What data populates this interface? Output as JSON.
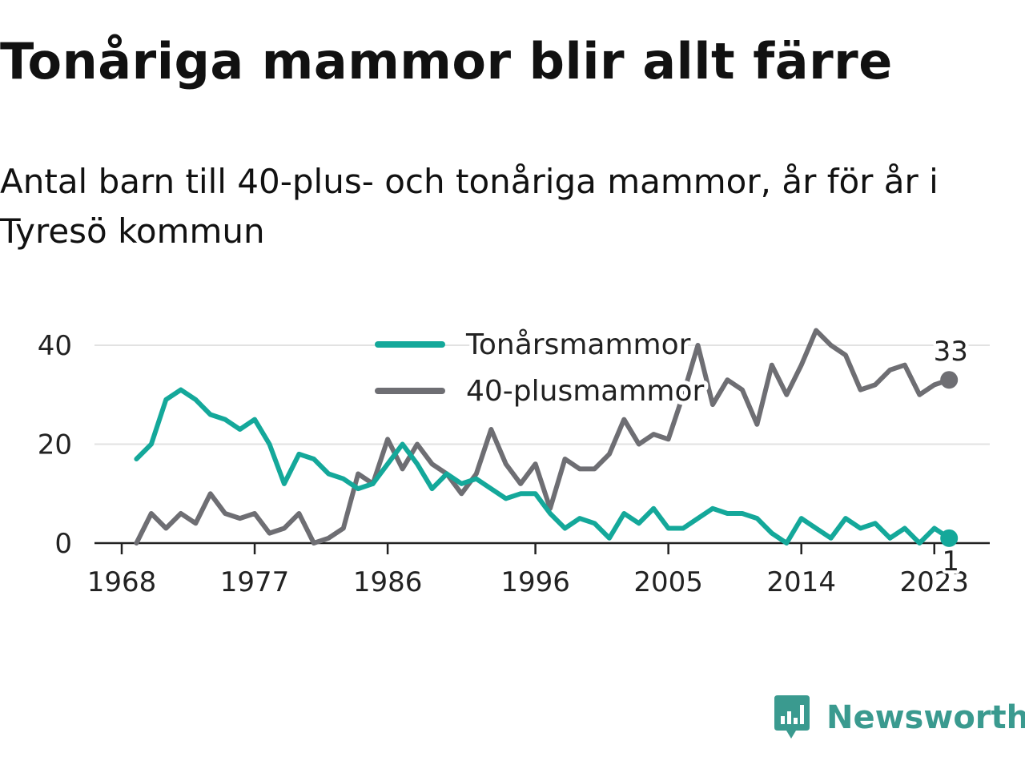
{
  "title": "Tonåriga mammor blir allt färre",
  "subtitle": "Antal barn till 40-plus- och tonåriga mammor, år för år i Tyresö kommun",
  "brand": {
    "name": "Newsworthy",
    "color": "#3a9a8f",
    "icon": "newsworthy-logo-icon"
  },
  "colors": {
    "teen": "#14a89a",
    "forty": "#6e6e73",
    "grid": "#e2e2e2",
    "axis": "#222222",
    "text": "#222222"
  },
  "chart_data": {
    "type": "line",
    "title": "",
    "xlabel": "",
    "ylabel": "",
    "x_ticks": [
      "1968",
      "1977",
      "1986",
      "1996",
      "2005",
      "2014",
      "2023"
    ],
    "y_ticks": [
      "0",
      "20",
      "40"
    ],
    "xlim": [
      1968,
      2024
    ],
    "ylim": [
      0,
      45
    ],
    "grid": true,
    "legend_position": "top-center",
    "x": [
      1969,
      1970,
      1971,
      1972,
      1973,
      1974,
      1975,
      1976,
      1977,
      1978,
      1979,
      1980,
      1981,
      1982,
      1983,
      1984,
      1985,
      1986,
      1987,
      1988,
      1989,
      1990,
      1991,
      1992,
      1993,
      1994,
      1995,
      1996,
      1997,
      1998,
      1999,
      2000,
      2001,
      2002,
      2003,
      2004,
      2005,
      2006,
      2007,
      2008,
      2009,
      2010,
      2011,
      2012,
      2013,
      2014,
      2015,
      2016,
      2017,
      2018,
      2019,
      2020,
      2021,
      2022,
      2023,
      2024
    ],
    "series": [
      {
        "name": "Tonårsmammor",
        "color": "#14a89a",
        "values": [
          17,
          20,
          29,
          31,
          29,
          26,
          25,
          23,
          25,
          20,
          12,
          18,
          17,
          14,
          13,
          11,
          12,
          16,
          20,
          16,
          11,
          14,
          12,
          13,
          11,
          9,
          10,
          10,
          6,
          3,
          5,
          4,
          1,
          6,
          4,
          7,
          3,
          3,
          5,
          7,
          6,
          6,
          5,
          2,
          0,
          5,
          3,
          1,
          5,
          3,
          4,
          1,
          3,
          0,
          3,
          1
        ],
        "end_label": "1"
      },
      {
        "name": "40-plusmammor",
        "color": "#6e6e73",
        "values": [
          0,
          6,
          3,
          6,
          4,
          10,
          6,
          5,
          6,
          2,
          3,
          6,
          0,
          1,
          3,
          14,
          12,
          21,
          15,
          20,
          16,
          14,
          10,
          14,
          23,
          16,
          12,
          16,
          7,
          17,
          15,
          15,
          18,
          25,
          20,
          22,
          21,
          30,
          40,
          28,
          33,
          31,
          24,
          36,
          30,
          36,
          43,
          40,
          38,
          31,
          32,
          35,
          36,
          30,
          32,
          33
        ],
        "end_label": "33"
      }
    ]
  }
}
